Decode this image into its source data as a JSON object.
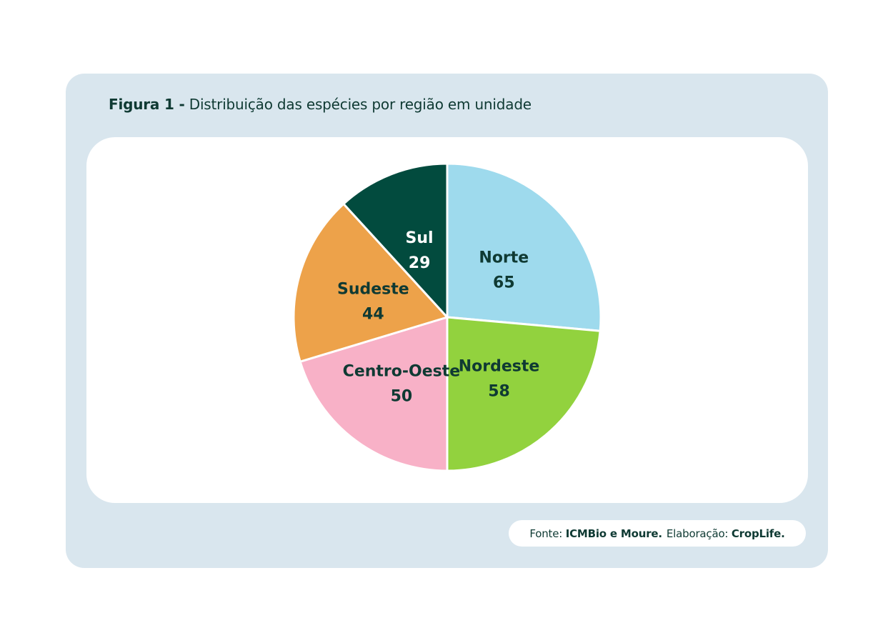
{
  "figure": {
    "label": "Figura 1 -",
    "title": "Distribuição das espécies por região em unidade"
  },
  "source": {
    "prefix": "Fonte:",
    "source_name": "ICMBio e Moure.",
    "credit_prefix": "Elaboração:",
    "credit_name": "CropLife."
  },
  "chart_data": {
    "type": "pie",
    "title": "",
    "start_angle_deg": 0,
    "direction": "clockwise",
    "slices": [
      {
        "label": "Norte",
        "value": 65,
        "color": "#9edaed",
        "label_color": "#0f3a33"
      },
      {
        "label": "Nordeste",
        "value": 58,
        "color": "#92d23e",
        "label_color": "#0f3a33"
      },
      {
        "label": "Centro-Oeste",
        "value": 50,
        "color": "#f8b1c7",
        "label_color": "#0f3a33"
      },
      {
        "label": "Sudeste",
        "value": 44,
        "color": "#eda24a",
        "label_color": "#0f3a33"
      },
      {
        "label": "Sul",
        "value": 29,
        "color": "#024b3e",
        "label_color": "#ffffff"
      }
    ]
  }
}
